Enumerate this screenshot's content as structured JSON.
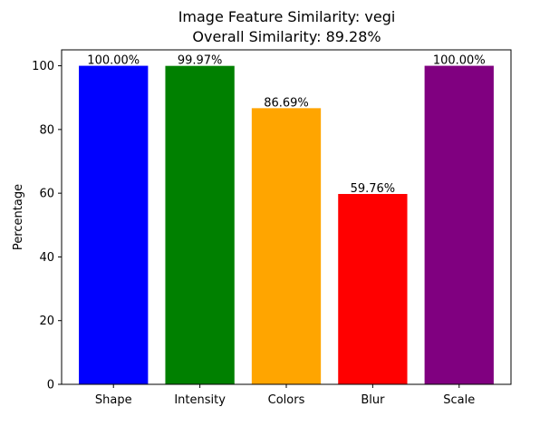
{
  "chart_data": {
    "type": "bar",
    "title": "Image Feature Similarity: vegi",
    "subtitle": "Overall Similarity: 89.28%",
    "xlabel": "",
    "ylabel": "Percentage",
    "categories": [
      "Shape",
      "Intensity",
      "Colors",
      "Blur",
      "Scale"
    ],
    "values": [
      100.0,
      99.97,
      86.69,
      59.76,
      100.0
    ],
    "value_labels": [
      "100.00%",
      "99.97%",
      "86.69%",
      "59.76%",
      "100.00%"
    ],
    "colors": [
      "#0000ff",
      "#008000",
      "#ffa500",
      "#ff0000",
      "#800080"
    ],
    "ylim": [
      0,
      100
    ],
    "yticks": [
      0,
      20,
      40,
      60,
      80,
      100
    ],
    "grid": false,
    "legend": "none"
  }
}
